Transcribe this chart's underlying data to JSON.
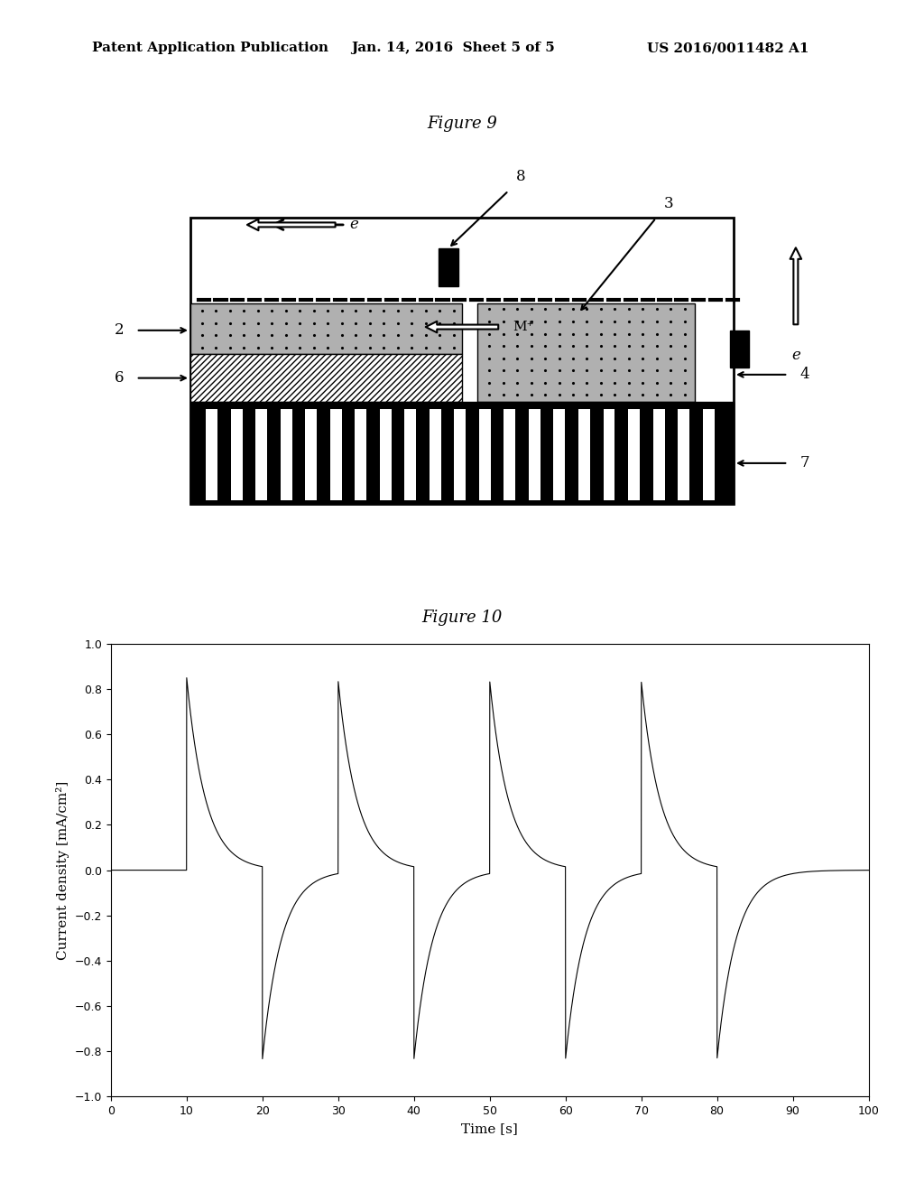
{
  "bg_color": "#ffffff",
  "header_left": "Patent Application Publication",
  "header_mid": "Jan. 14, 2016  Sheet 5 of 5",
  "header_right": "US 2016/0011482 A1",
  "fig9_title": "Figure 9",
  "fig10_title": "Figure 10",
  "ylabel": "Current density [mA/cm²]",
  "xlabel": "Time [s]",
  "xlim": [
    0,
    100
  ],
  "ylim": [
    -1,
    1
  ],
  "xticks": [
    0,
    10,
    20,
    30,
    40,
    50,
    60,
    70,
    80,
    90,
    100
  ],
  "yticks": [
    -1,
    -0.8,
    -0.6,
    -0.4,
    -0.2,
    0,
    0.2,
    0.4,
    0.6,
    0.8,
    1
  ]
}
